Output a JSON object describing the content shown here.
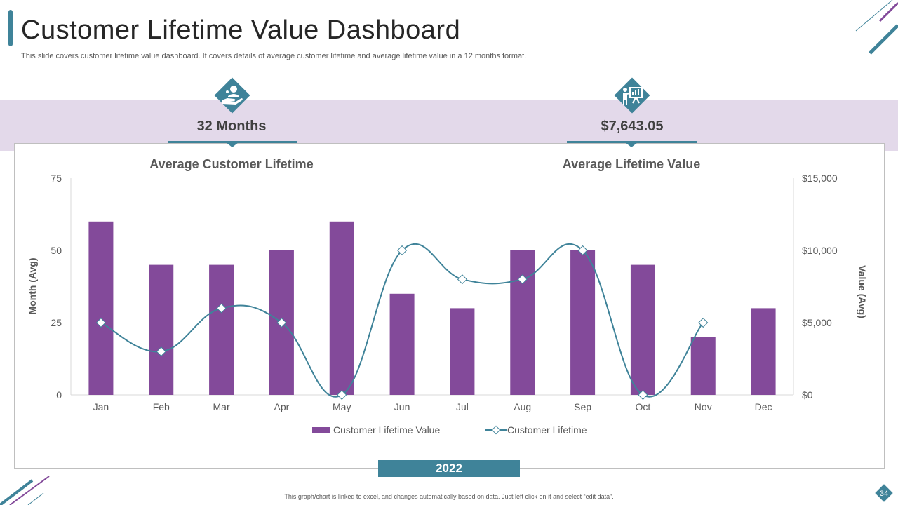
{
  "page": {
    "title": "Customer Lifetime Value Dashboard",
    "subtitle": "This slide covers customer lifetime value dashboard. It covers details of average customer lifetime and average lifetime value in a 12 months format.",
    "footnote": "This graph/chart is linked to excel, and changes automatically based on data. Just left click on it and select “edit data”.",
    "page_number": "34",
    "year": "2022"
  },
  "kpis": [
    {
      "value": "32 Months",
      "heading": "Average Customer Lifetime",
      "icon": "hand-customer-icon"
    },
    {
      "value": "$7,643.05",
      "heading": "Average Lifetime Value",
      "icon": "presenter-board-icon"
    }
  ],
  "colors": {
    "accent": "#3f8399",
    "bar": "#834a9a",
    "band": "#e3d9ea",
    "line": "#3f8399"
  },
  "chart_data": {
    "type": "bar",
    "categories": [
      "Jan",
      "Feb",
      "Mar",
      "Apr",
      "May",
      "Jun",
      "Jul",
      "Aug",
      "Sep",
      "Oct",
      "Nov",
      "Dec"
    ],
    "series": [
      {
        "name": "Customer Lifetime Value",
        "type": "bar",
        "axis": "left",
        "values": [
          60,
          45,
          45,
          50,
          60,
          35,
          30,
          50,
          50,
          45,
          20,
          30
        ]
      },
      {
        "name": "Customer Lifetime",
        "type": "line",
        "axis": "right",
        "values": [
          5000,
          3000,
          6000,
          5000,
          0,
          10000,
          8000,
          8000,
          10000,
          0,
          5000,
          null
        ]
      }
    ],
    "ylabel_left": "Month (Avg)",
    "ylabel_right": "Value (Avg)",
    "ylim_left": [
      0,
      75
    ],
    "ylim_right": [
      0,
      15000
    ],
    "yticks_left": [
      "0",
      "25",
      "50",
      "75"
    ],
    "yticks_right": [
      "$0",
      "$5,000",
      "$10,000",
      "$15,000"
    ],
    "yticks_left_values": [
      0,
      25,
      50,
      75
    ],
    "yticks_right_values": [
      0,
      5000,
      10000,
      15000
    ],
    "legend": "bottom",
    "grid": false
  }
}
